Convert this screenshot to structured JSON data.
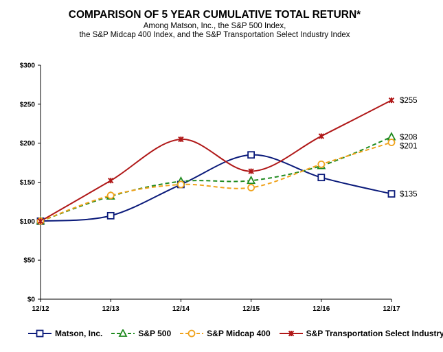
{
  "header": {
    "title": "COMPARISON OF 5 YEAR CUMULATIVE TOTAL RETURN*",
    "subtitle_line1": "Among Matson, Inc., the S&P 500 Index,",
    "subtitle_line2": "the S&P Midcap 400 Index, and the S&P Transportation Select Industry Index"
  },
  "chart_data": {
    "type": "line",
    "categories": [
      "12/12",
      "12/13",
      "12/14",
      "12/15",
      "12/16",
      "12/17"
    ],
    "yticks": [
      "$0",
      "$50",
      "$100",
      "$150",
      "$200",
      "$250",
      "$300"
    ],
    "ylim": [
      0,
      300
    ],
    "xlabel": "",
    "ylabel": "",
    "grid": false,
    "legend_position": "bottom",
    "series": [
      {
        "name": "Matson, Inc.",
        "values": [
          100,
          107,
          147,
          185,
          156,
          135
        ],
        "end_label": "$135",
        "color": "#0a1a7a",
        "marker": "square",
        "dash": "solid"
      },
      {
        "name": "S&P 500",
        "values": [
          100,
          132,
          151,
          152,
          171,
          208
        ],
        "end_label": "$208",
        "color": "#1f8a1f",
        "marker": "triangle",
        "dash": "dashed"
      },
      {
        "name": "S&P Midcap 400",
        "values": [
          100,
          133,
          147,
          143,
          173,
          201
        ],
        "end_label": "$201",
        "color": "#f0a21c",
        "marker": "circle",
        "dash": "dashed"
      },
      {
        "name": "S&P Transportation Select Industry",
        "values": [
          100,
          152,
          205,
          164,
          209,
          255
        ],
        "end_label": "$255",
        "color": "#b01818",
        "marker": "star",
        "dash": "solid"
      }
    ]
  }
}
